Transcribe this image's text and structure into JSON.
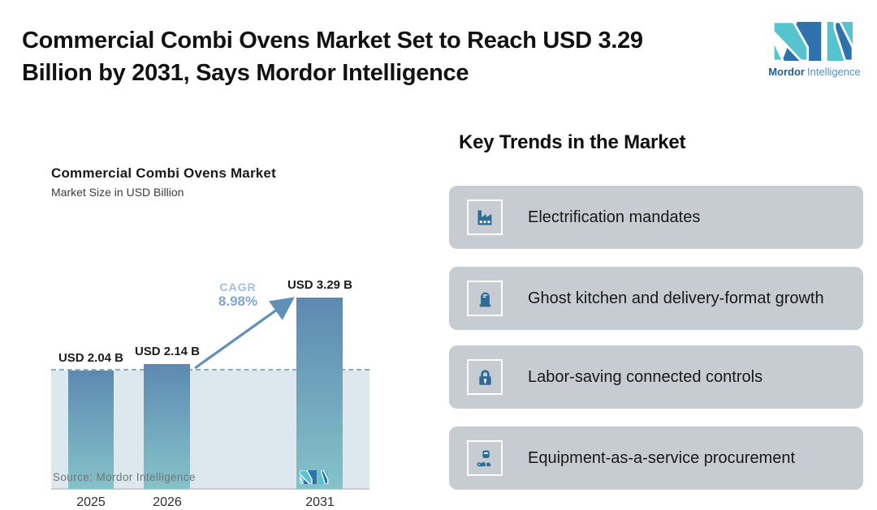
{
  "header": {
    "title_line1": "Commercial Combi Ovens Market Set to Reach USD 3.29",
    "title_line2": "Billion by 2031, Says Mordor Intelligence",
    "brand_bold": "Mordor",
    "brand_light": "Intelligence"
  },
  "chart_data": {
    "type": "bar",
    "title": "Commercial Combi Ovens Market",
    "subtitle": "Market Size in USD Billion",
    "categories": [
      "2025",
      "2026",
      "2031"
    ],
    "values": [
      2.04,
      2.14,
      3.29
    ],
    "value_labels": [
      "USD 2.04 B",
      "USD 2.14 B",
      "USD 3.29 B"
    ],
    "unit": "USD Billion",
    "cagr_label": "CAGR",
    "cagr_value": "8.98%",
    "baseline_value": 2.04,
    "ylim": [
      0,
      3.29
    ],
    "grid": false,
    "legend": "none",
    "source": "Source: Mordor Intelligence",
    "bar_gradient_top": "#5d89b1",
    "bar_gradient_bottom": "#85c2c9",
    "dashed_line_color": "#84adc6",
    "shaded_region_color": "#dce7ee",
    "arrow_color": "#6090b8"
  },
  "trends": {
    "heading": "Key Trends in the Market",
    "card_bg": "#c7ccd2",
    "icon_color": "#2d6d94",
    "items": [
      {
        "icon": "factory-icon",
        "label": "Electrification mandates"
      },
      {
        "icon": "ghost-kitchen-icon",
        "label": "Ghost kitchen and delivery-format growth"
      },
      {
        "icon": "lock-icon",
        "label": "Labor-saving connected controls"
      },
      {
        "icon": "technician-icon",
        "label": "Equipment-as-a-service procurement"
      }
    ]
  },
  "colors": {
    "teal": "#57c3cf",
    "blue": "#2e71ad"
  }
}
